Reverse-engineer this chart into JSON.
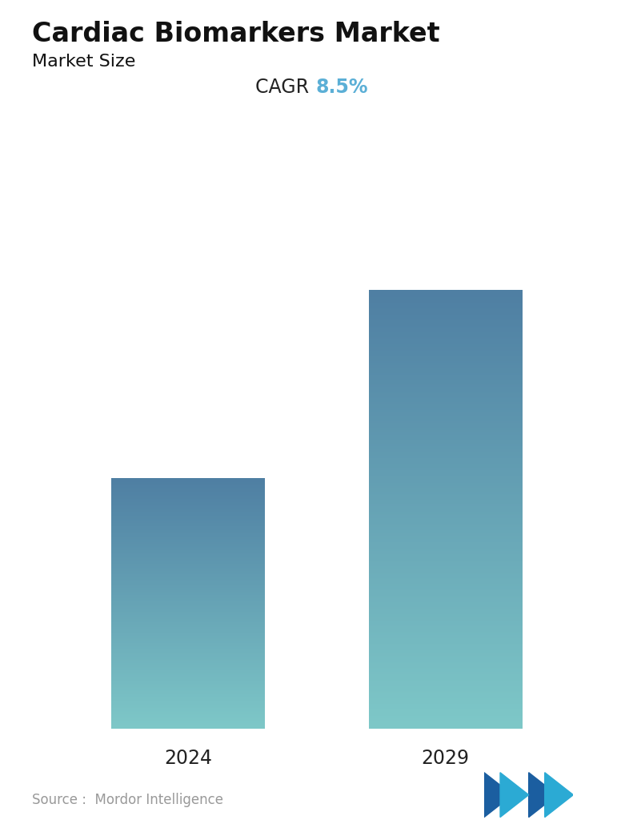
{
  "title": "Cardiac Biomarkers Market",
  "subtitle": "Market Size",
  "cagr_label": "CAGR",
  "cagr_value": "8.5%",
  "cagr_color": "#5BAFD6",
  "categories": [
    "2024",
    "2029"
  ],
  "values": [
    1.0,
    1.75
  ],
  "bar_top_color": "#4F7FA3",
  "bar_bottom_color": "#7EC8C8",
  "source_text": "Source :  Mordor Intelligence",
  "background_color": "#ffffff",
  "title_fontsize": 24,
  "subtitle_fontsize": 16,
  "cagr_fontsize": 17,
  "xlabel_fontsize": 17,
  "source_fontsize": 12
}
